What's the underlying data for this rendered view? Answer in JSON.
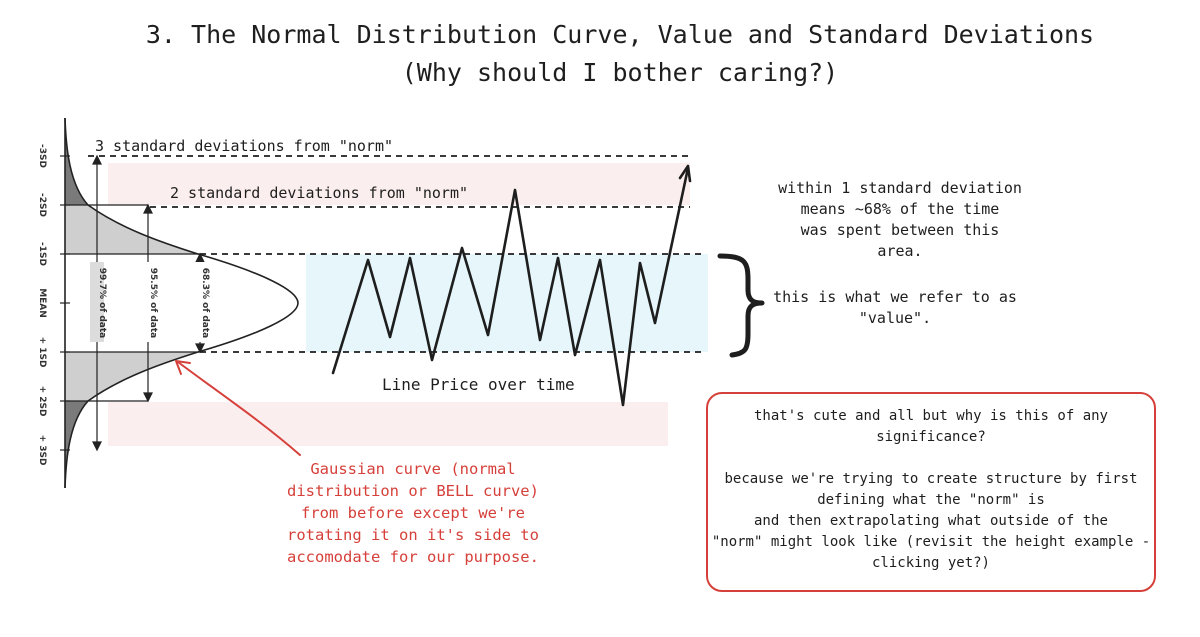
{
  "title": {
    "line1": "3. The Normal Distribution Curve, Value and Standard Deviations",
    "line2": "(Why should I bother caring?)"
  },
  "bell": {
    "axis_labels": [
      "-3SD",
      "-2SD",
      "-1SD",
      "MEAN",
      "+ 1SD",
      "+ 2SD",
      "+ 3SD"
    ],
    "bracket_labels": [
      "99.7% of data",
      "95.5% of data",
      "68.3% of data"
    ]
  },
  "chart": {
    "label_3sd": "3 standard deviations from \"norm\"",
    "label_2sd": "2 standard deviations from \"norm\"",
    "price_label": "Line Price over time"
  },
  "value_note": {
    "lines": [
      "within 1 standard deviation",
      "means ~68% of the time",
      "was spent between this",
      "area."
    ],
    "value_line1": "this is what we refer to as",
    "value_line2": "\"value\"."
  },
  "gaussian_note": {
    "lines": [
      "Gaussian curve (normal",
      "distribution or BELL curve)",
      "from before except we're",
      "rotating it on it's side to",
      "accomodate for our purpose."
    ]
  },
  "significance_box": {
    "q_line1": "that's cute and all but why is this of any",
    "q_line2": "significance?",
    "a_lines": [
      "because we're trying to create structure by first",
      "defining what the \"norm\" is",
      "and then extrapolating what outside of the",
      "\"norm\" might look like (revisit the height example -",
      "clicking yet?)"
    ]
  },
  "colors": {
    "red": "#d6403a",
    "value_band": "#e6f6fb",
    "outer_band": "#fbeeee"
  }
}
